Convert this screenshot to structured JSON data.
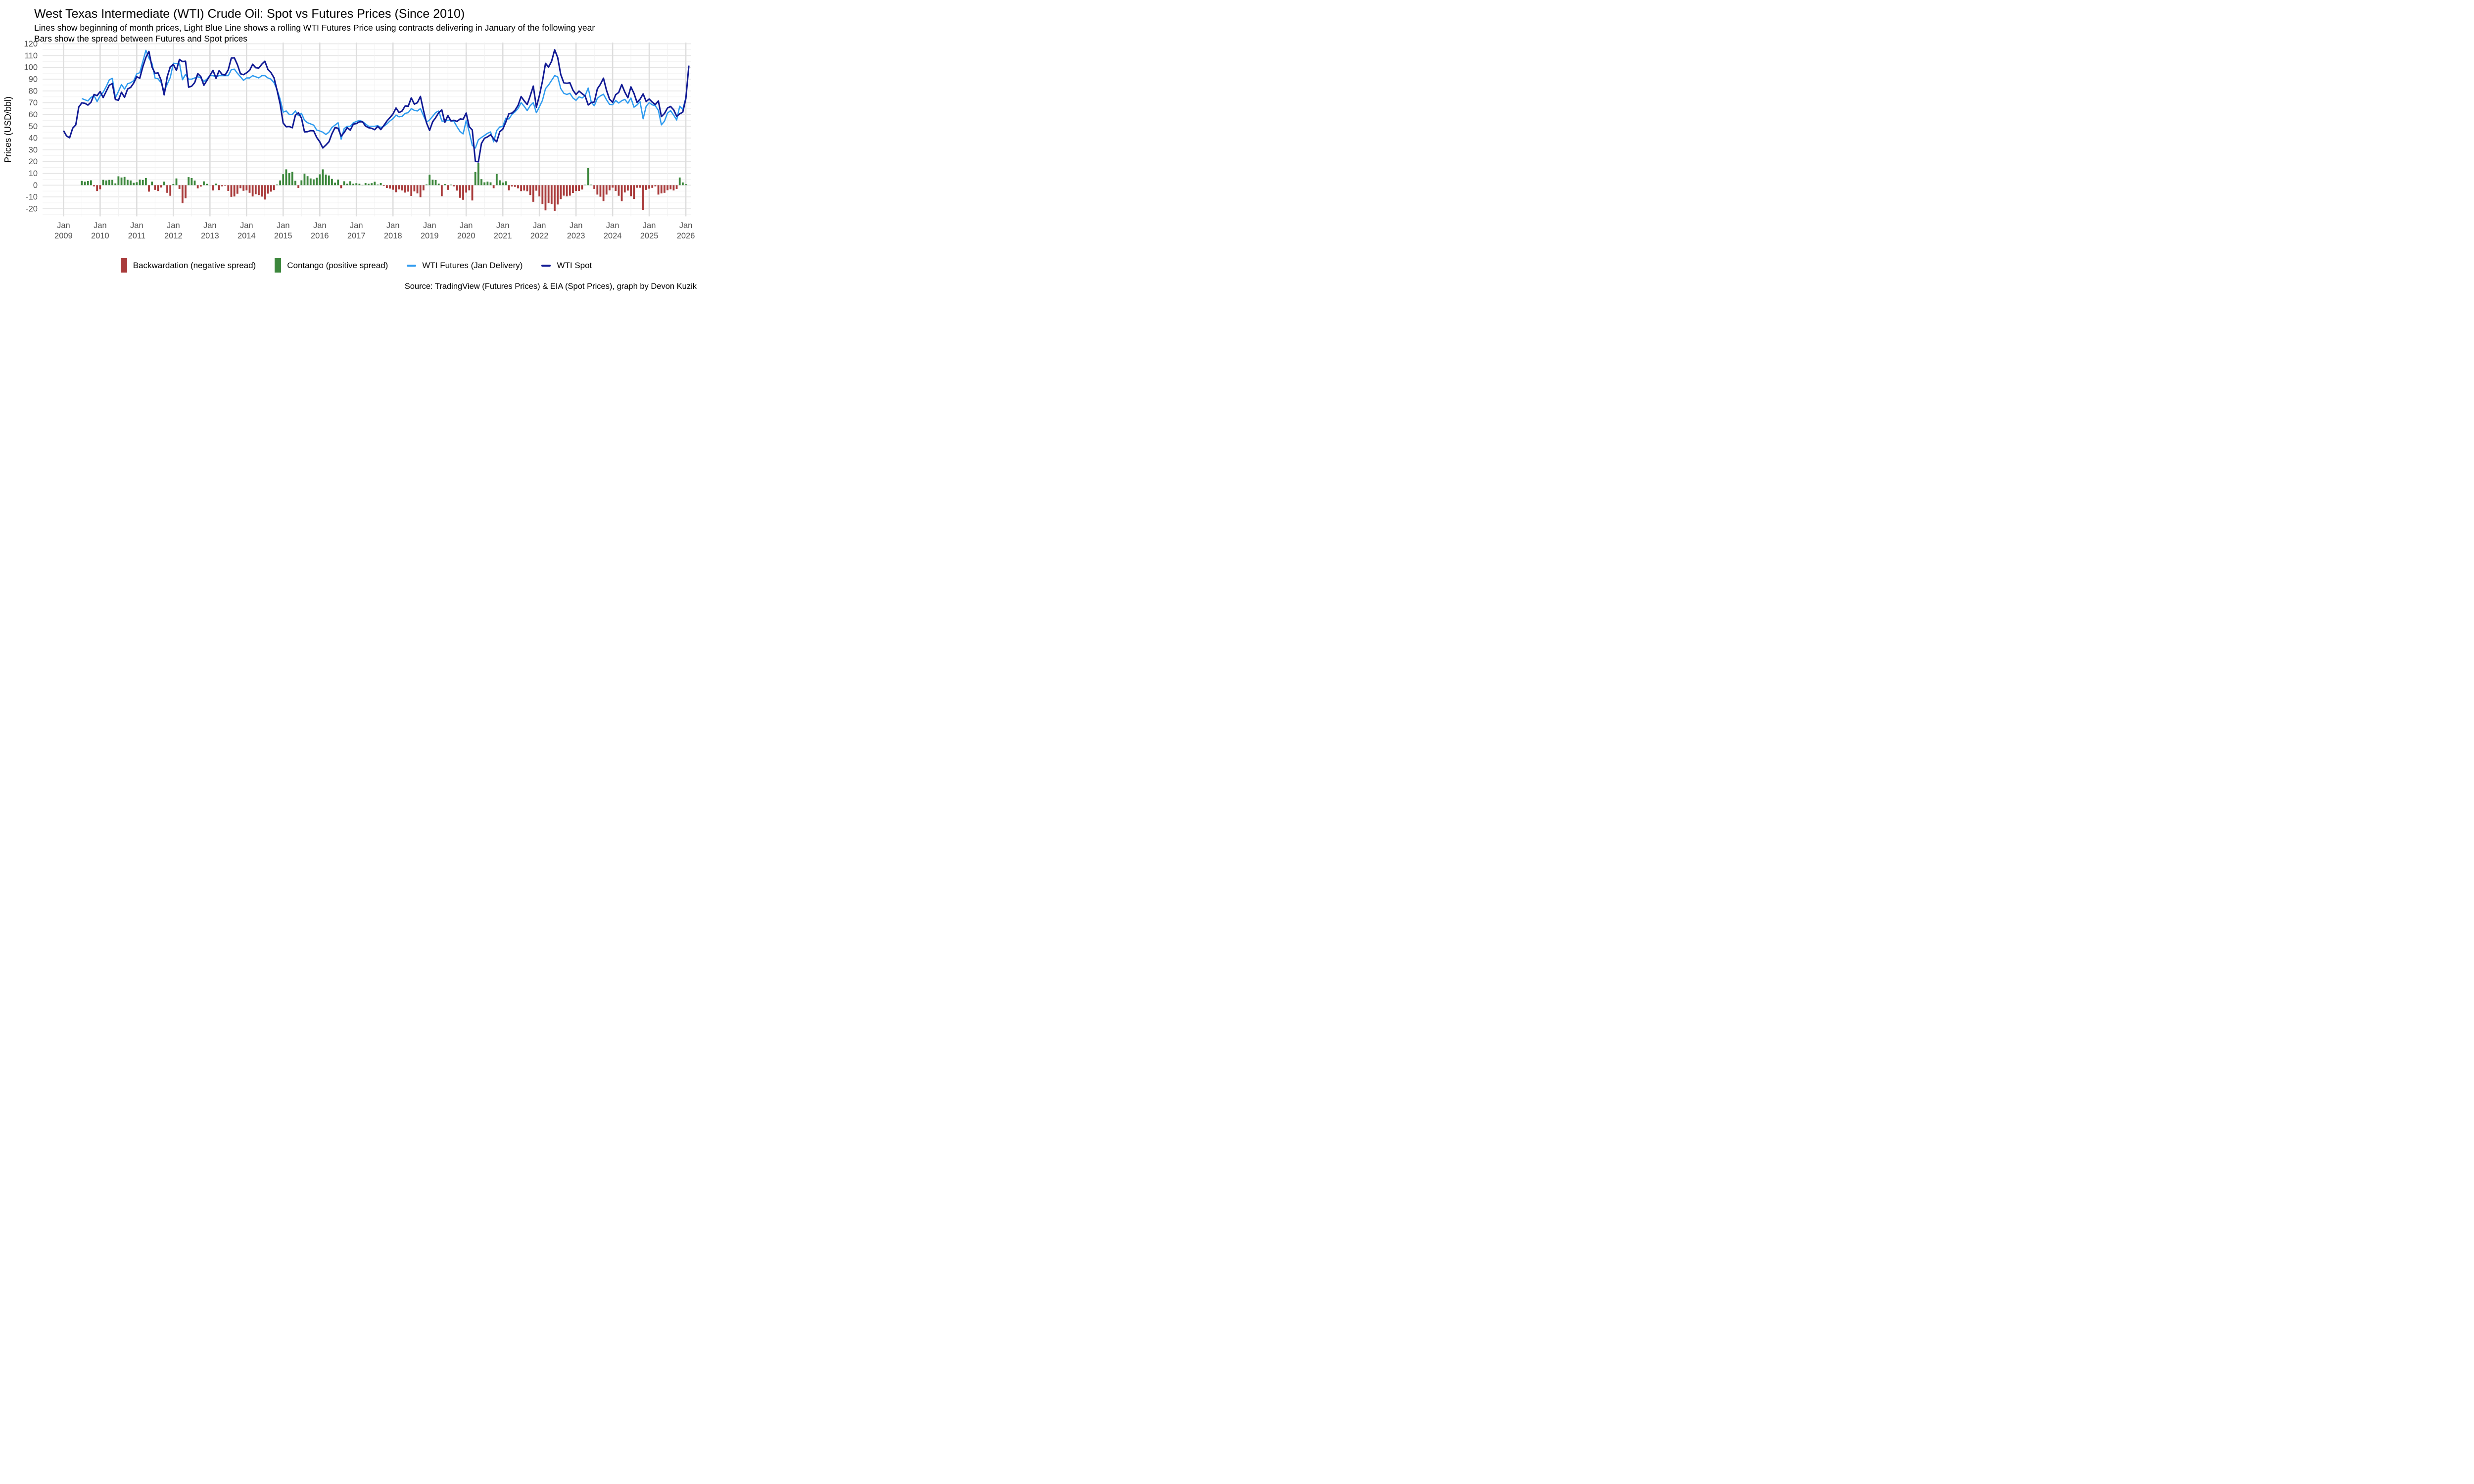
{
  "header": {
    "title": "West Texas Intermediate (WTI) Crude Oil: Spot vs Futures Prices (Since 2010)",
    "subtitle_line1": "Lines show beginning of month prices, Light Blue Line shows a rolling WTI Futures Price using contracts delivering in January of the following year",
    "subtitle_line2": "Bars show the spread between Futures and Spot prices"
  },
  "source_note": "Source: TradingView (Futures Prices) & EIA (Spot Prices), graph by Devon Kuzik",
  "legend": {
    "items": [
      {
        "key": "backwardation",
        "label": "Backwardation (negative spread)",
        "swatch": "bar",
        "color": "#A93B3B"
      },
      {
        "key": "contango",
        "label": "Contango (positive spread)",
        "swatch": "bar",
        "color": "#3C873C"
      },
      {
        "key": "futures",
        "label": "WTI Futures (Jan Delivery)",
        "swatch": "line",
        "color": "#2F9BEF"
      },
      {
        "key": "spot",
        "label": "WTI Spot",
        "swatch": "line",
        "color": "#111A94"
      }
    ]
  },
  "chart_data": {
    "type": "line",
    "title": "West Texas Intermediate (WTI) Crude Oil: Spot vs Futures Prices (Since 2010)",
    "xlabel": "",
    "ylabel": "Prices (USD/bbl)",
    "ylim": [
      -26.5,
      121
    ],
    "yticks": [
      -20,
      -10,
      0,
      10,
      20,
      30,
      40,
      50,
      60,
      70,
      80,
      90,
      100,
      110,
      120
    ],
    "x_tick_years": [
      2009,
      2010,
      2011,
      2012,
      2013,
      2014,
      2015,
      2016,
      2017,
      2018,
      2019,
      2020,
      2021,
      2022,
      2023,
      2024,
      2025,
      2026
    ],
    "x_tick_label_top": "Jan",
    "grid": {
      "h_minor_step": 5,
      "v_minor": "july",
      "v_major": "january",
      "legend_position": "bottom"
    },
    "bars_note": "spread bars = futures minus spot, green when positive (contango), red when negative (backwardation)",
    "series": [
      {
        "name": "WTI Spot",
        "color": "#111A94",
        "start_month": "2009-01",
        "start_offset_months": 0,
        "values": [
          46.3,
          41.7,
          40.2,
          48.4,
          51.1,
          66.3,
          69.9,
          69.5,
          68.0,
          70.4,
          77.0,
          76.0,
          79.4,
          74.4,
          79.7,
          84.9,
          86.2,
          72.7,
          72.1,
          78.9,
          74.6,
          81.6,
          83.0,
          86.7,
          92.0,
          90.8,
          100.6,
          108.5,
          113.5,
          100.3,
          94.9,
          95.3,
          88.9,
          76.7,
          92.2,
          100.5,
          102.5,
          97.5,
          106.7,
          104.9,
          105.2,
          83.2,
          84.0,
          87.1,
          94.7,
          92.2,
          84.8,
          88.9,
          93.1,
          97.5,
          90.7,
          97.2,
          94.0,
          93.5,
          97.9,
          107.9,
          108.1,
          102.3,
          94.6,
          93.8,
          95.4,
          97.5,
          102.6,
          99.7,
          99.4,
          102.7,
          105.2,
          98.2,
          95.5,
          91.2,
          80.5,
          69.0,
          52.7,
          49.6,
          49.8,
          48.7,
          59.3,
          61.4,
          56.9,
          45.2,
          45.4,
          46.3,
          46.1,
          40.5,
          36.8,
          31.6,
          34.0,
          36.8,
          43.7,
          48.9,
          48.3,
          41.6,
          44.7,
          48.8,
          46.7,
          51.8,
          52.3,
          53.8,
          53.8,
          50.2,
          48.8,
          48.3,
          47.1,
          50.0,
          47.2,
          50.6,
          54.4,
          57.4,
          60.4,
          65.5,
          61.6,
          63.0,
          67.3,
          67.0,
          74.1,
          68.8,
          70.0,
          75.3,
          63.4,
          52.9,
          46.5,
          53.8,
          57.3,
          61.6,
          63.9,
          53.3,
          59.1,
          54.5,
          55.1,
          54.1,
          56.2,
          55.9,
          61.2,
          49.6,
          46.8,
          20.3,
          19.8,
          35.4,
          39.8,
          41.0,
          42.8,
          39.4,
          36.8,
          45.3,
          47.6,
          53.6,
          60.6,
          61.2,
          63.6,
          67.7,
          75.2,
          71.6,
          68.5,
          75.9,
          84.1,
          66.2,
          76.1,
          88.2,
          103.4,
          100.3,
          105.2,
          114.9,
          108.4,
          93.9,
          86.9,
          86.5,
          86.9,
          80.6,
          77.0,
          79.9,
          77.7,
          75.7,
          68.1,
          70.1,
          70.6,
          81.8,
          85.6,
          90.8,
          80.5,
          73.0,
          70.4,
          76.8,
          78.7,
          85.4,
          79.0,
          74.2,
          83.4,
          77.9,
          70.3,
          73.0,
          77.5,
          71.0,
          73.1,
          70.5,
          68.4,
          71.5,
          58.2,
          60.8,
          65.5,
          66.8,
          64.0,
          58.5,
          60.5,
          62.0,
          73.5,
          101.5
        ]
      },
      {
        "name": "WTI Futures (Jan Delivery)",
        "color": "#2F9BEF",
        "start_month": "2009-07",
        "start_offset_months": 6,
        "values": [
          73.5,
          72.5,
          71.5,
          74.5,
          76.0,
          71.0,
          75.9,
          78.9,
          83.7,
          89.4,
          90.7,
          74.2,
          79.6,
          85.4,
          81.6,
          86.1,
          87.0,
          88.7,
          94.5,
          95.5,
          105.0,
          114.5,
          108.0,
          103.3,
          90.9,
          90.3,
          86.9,
          79.7,
          85.7,
          91.5,
          103.5,
          103.2,
          103.5,
          89.5,
          94.0,
          90.0,
          90.0,
          91.0,
          92.0,
          91.0,
          88.0,
          90.0,
          93.0,
          93.0,
          92.0,
          93.0,
          93.0,
          93.0,
          93.0,
          98.0,
          98.5,
          95.0,
          92.0,
          89.0,
          91.0,
          91.0,
          93.0,
          92.0,
          91.0,
          93.0,
          93.0,
          91.0,
          90.0,
          87.0,
          81.0,
          73.0,
          62.0,
          63.0,
          60.0,
          60.0,
          63.0,
          59.0,
          61.0,
          55.0,
          53.0,
          52.0,
          51.0,
          46.8,
          46.0,
          45.0,
          43.0,
          45.0,
          49.0,
          51.0,
          53.0,
          39.0,
          48.0,
          50.0,
          50.0,
          53.0,
          54.0,
          55.0,
          54.0,
          52.0,
          50.0,
          50.0,
          50.0,
          50.5,
          49.0,
          50.0,
          52.0,
          54.5,
          56.5,
          59.5,
          58.0,
          58.5,
          61.0,
          61.5,
          65.0,
          63.5,
          63.0,
          65.0,
          59.0,
          53.5,
          55.4,
          58.4,
          61.7,
          62.9,
          54.5,
          54.2,
          55.1,
          54.9,
          54.1,
          49.5,
          45.5,
          43.5,
          54.9,
          45.2,
          33.8,
          31.5,
          38.5,
          40.5,
          42.2,
          44.0,
          45.2,
          36.8,
          46.3,
          49.4,
          49.8,
          56.9,
          56.2,
          60.1,
          62.2,
          65.0,
          70.1,
          67.0,
          63.3,
          67.5,
          70.0,
          61.5,
          66.5,
          72.0,
          82.0,
          85.0,
          89.0,
          93.0,
          92.0,
          82.0,
          78.0,
          77.0,
          78.0,
          74.0,
          72.0,
          75.0,
          74.0,
          76.0,
          82.5,
          70.5,
          67.4,
          73.8,
          75.8,
          77.2,
          72.5,
          68.6,
          68.3,
          71.9,
          69.7,
          71.7,
          72.8,
          69.6,
          74.0,
          66.2,
          68.1,
          70.8,
          56.3,
          67.0,
          70.1,
          68.2,
          67.4,
          63.5,
          51.2,
          54.3,
          61.2,
          63.3,
          59.5,
          55.3,
          67.0,
          64.3,
          74.3
        ]
      }
    ]
  }
}
